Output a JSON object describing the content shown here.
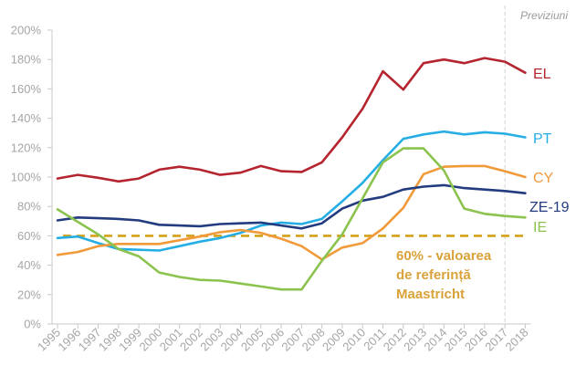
{
  "chart_data": {
    "type": "line",
    "title": "",
    "xlabel": "",
    "ylabel": "",
    "forecast_label": "Previziuni",
    "forecast_from": "2017",
    "ylim": [
      0,
      200
    ],
    "yticks": [
      0,
      20,
      40,
      60,
      80,
      100,
      120,
      140,
      160,
      180,
      200
    ],
    "ytick_labels": [
      "0%",
      "20%",
      "40%",
      "60%",
      "80%",
      "100%",
      "120%",
      "140%",
      "160%",
      "180%",
      "200%"
    ],
    "categories": [
      "1995",
      "1996",
      "1997",
      "1998",
      "1999",
      "2000",
      "2001",
      "2002",
      "2003",
      "2004",
      "2005",
      "2006",
      "2007",
      "2008",
      "2009",
      "2010",
      "2011",
      "2012",
      "2013",
      "2014",
      "2015",
      "2016",
      "2017",
      "2018"
    ],
    "series": [
      {
        "name": "EL",
        "color": "#b5252f",
        "values": [
          99,
          101.5,
          99.5,
          97,
          99,
          105,
          107,
          105,
          101.5,
          103,
          107.5,
          104,
          103.5,
          110,
          127,
          146.5,
          172,
          159.5,
          177.5,
          180,
          177.5,
          181,
          178.5,
          171
        ]
      },
      {
        "name": "PT",
        "color": "#26aee4",
        "values": [
          58.5,
          59.5,
          55,
          51,
          50.5,
          50,
          53,
          56,
          58.5,
          62,
          67,
          69,
          68,
          71.5,
          83.5,
          96,
          111.5,
          126,
          129,
          131,
          129,
          130.5,
          129.5,
          127
        ]
      },
      {
        "name": "CY",
        "color": "#f09a3a",
        "values": [
          47,
          49,
          53,
          54.5,
          54.5,
          54.5,
          57,
          59.5,
          62.5,
          64,
          62,
          58,
          53,
          44,
          52,
          55,
          65,
          79,
          102,
          107,
          107.5,
          107.5,
          104,
          100
        ]
      },
      {
        "name": "ZE-19",
        "color": "#233b7f",
        "values": [
          70.5,
          72.5,
          72,
          71.5,
          70.5,
          67.5,
          67,
          66.5,
          68,
          68.5,
          69,
          67,
          65,
          68.5,
          78.5,
          84,
          86.5,
          91.5,
          93.5,
          94.5,
          92.5,
          91.5,
          90.5,
          89
        ]
      },
      {
        "name": "IE",
        "color": "#8cc34f",
        "values": [
          78,
          69.5,
          61,
          51,
          46,
          35,
          32,
          30,
          29.5,
          27.5,
          25.5,
          23.5,
          23.5,
          43,
          61,
          85.5,
          110,
          119.5,
          119.5,
          104.5,
          78.5,
          75,
          73.5,
          72.5
        ]
      }
    ],
    "reference": {
      "value": 60,
      "color": "#d4a017",
      "label_lines": [
        "60% - valoarea",
        "de referință",
        "Maastricht"
      ]
    }
  }
}
